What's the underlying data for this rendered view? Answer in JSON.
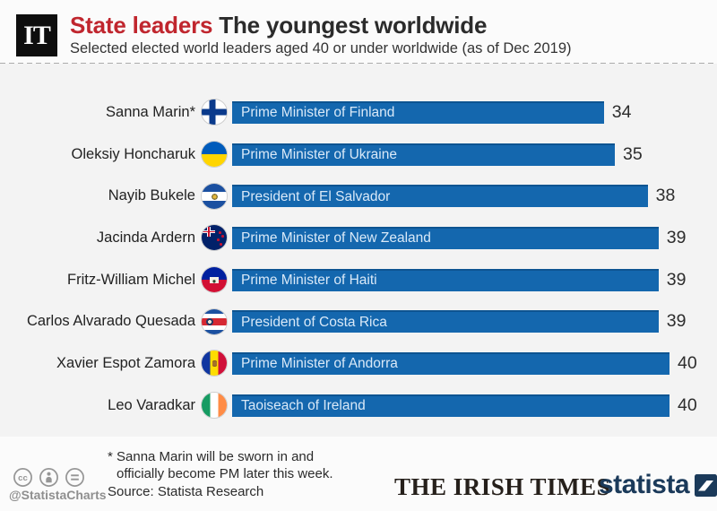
{
  "header": {
    "logo_text": "IT",
    "title_highlight": "State leaders",
    "title_rest": "The youngest worldwide",
    "subtitle": "Selected elected world leaders aged 40 or under worldwide (as of Dec 2019)"
  },
  "chart_data": {
    "type": "bar",
    "orientation": "horizontal",
    "value_unit": "age in years",
    "xlim": [
      0,
      40
    ],
    "bar_color": "#1467ae",
    "grid": false,
    "legend": "none",
    "rows": [
      {
        "name": "Sanna Marin*",
        "country": "Finland",
        "flag_icon": "finland-flag-icon",
        "title": "Prime Minister of Finland",
        "age": 34
      },
      {
        "name": "Oleksiy Honcharuk",
        "country": "Ukraine",
        "flag_icon": "ukraine-flag-icon",
        "title": "Prime Minister of Ukraine",
        "age": 35
      },
      {
        "name": "Nayib Bukele",
        "country": "El Salvador",
        "flag_icon": "el-salvador-flag-icon",
        "title": "President of El Salvador",
        "age": 38
      },
      {
        "name": "Jacinda Ardern",
        "country": "New Zealand",
        "flag_icon": "new-zealand-flag-icon",
        "title": "Prime Minister of New Zealand",
        "age": 39
      },
      {
        "name": "Fritz-William Michel",
        "country": "Haiti",
        "flag_icon": "haiti-flag-icon",
        "title": "Prime Minister of Haiti",
        "age": 39
      },
      {
        "name": "Carlos Alvarado Quesada",
        "country": "Costa Rica",
        "flag_icon": "costa-rica-flag-icon",
        "title": "President of Costa Rica",
        "age": 39
      },
      {
        "name": "Xavier Espot Zamora",
        "country": "Andorra",
        "flag_icon": "andorra-flag-icon",
        "title": "Prime Minister of Andorra",
        "age": 40
      },
      {
        "name": "Leo Varadkar",
        "country": "Ireland",
        "flag_icon": "ireland-flag-icon",
        "title": "Taoiseach of Ireland",
        "age": 40
      }
    ]
  },
  "footer": {
    "footnote_line1": "* Sanna Marin will be sworn in and",
    "footnote_line2": "officially become PM later this week.",
    "source": "Source: Statista Research",
    "credit_handle": "@StatistaCharts",
    "license_icons": [
      "cc-icon",
      "attribution-person-icon",
      "equality-icon"
    ],
    "publisher": "THE IRISH TIMES",
    "brand": "statista"
  },
  "colors": {
    "accent_red": "#c0262e",
    "bar_blue": "#1467ae",
    "statista_navy": "#1b3a5a",
    "chart_background": "#f3f3f3",
    "page_background": "#fbfbfb"
  }
}
